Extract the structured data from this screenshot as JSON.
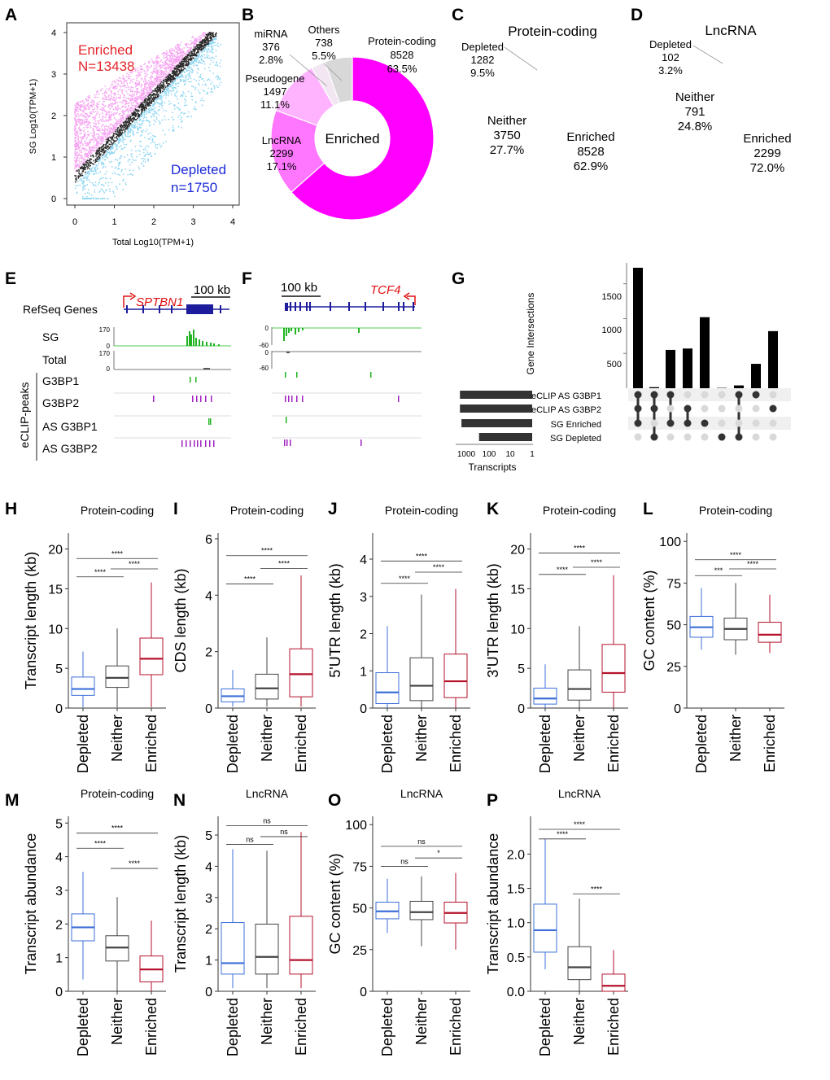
{
  "colors": {
    "enriched": "#ff00ff",
    "enriched_light": "#ffb3ff",
    "enriched_mid": "#ff77ff",
    "depleted": "#00aeef",
    "depleted_pts": "#8fd6f2",
    "neither": "#bebebe",
    "others": "#d8d8d8",
    "box_depleted": "#3c6fd8",
    "box_neither": "#444444",
    "box_enriched": "#b5122c",
    "track_green": "#21b321",
    "track_purple": "#a020c0",
    "gene_blue": "#1c1c9c",
    "gene_red": "#e01010"
  },
  "panels": {
    "A": "A",
    "B": "B",
    "C": "C",
    "D": "D",
    "E": "E",
    "F": "F",
    "G": "G",
    "H": "H",
    "I": "I",
    "J": "J",
    "K": "K",
    "L": "L",
    "M": "M",
    "N": "N",
    "O": "O",
    "P": "P"
  },
  "chart_data": [
    {
      "id": "A",
      "type": "scatter",
      "xlabel": "Total Log10(TPM+1)",
      "ylabel": "SG Log10(TPM+1)",
      "xlim": [
        0,
        4
      ],
      "ylim": [
        0,
        4
      ],
      "xticks": [
        "0",
        "1",
        "2",
        "3",
        "4"
      ],
      "yticks": [
        "0",
        "1",
        "2",
        "3",
        "4"
      ],
      "annotations": {
        "enriched_label": "Enriched",
        "enriched_n": "N=13438",
        "depleted_label": "Depleted",
        "depleted_n": "n=1750"
      }
    },
    {
      "id": "B",
      "type": "pie",
      "donut": true,
      "center_label": "Enriched",
      "title": "",
      "slices": [
        {
          "name": "Protein-coding",
          "count": "8528",
          "pct": "63.5%",
          "value": 63.5
        },
        {
          "name": "LncRNA",
          "count": "2299",
          "pct": "17.1%",
          "value": 17.1
        },
        {
          "name": "Pseudogene",
          "count": "1497",
          "pct": "11.1%",
          "value": 11.1
        },
        {
          "name": "miRNA",
          "count": "376",
          "pct": "2.8%",
          "value": 2.8
        },
        {
          "name": "Others",
          "count": "738",
          "pct": "5.5%",
          "value": 5.5
        }
      ]
    },
    {
      "id": "C",
      "type": "pie",
      "title": "Protein-coding",
      "slices": [
        {
          "name": "Enriched",
          "count": "8528",
          "pct": "62.9%",
          "value": 62.9
        },
        {
          "name": "Neither",
          "count": "3750",
          "pct": "27.7%",
          "value": 27.7
        },
        {
          "name": "Depleted",
          "count": "1282",
          "pct": "9.5%",
          "value": 9.5
        }
      ]
    },
    {
      "id": "D",
      "type": "pie",
      "title": "LncRNA",
      "slices": [
        {
          "name": "Enriched",
          "count": "2299",
          "pct": "72.0%",
          "value": 72.0
        },
        {
          "name": "Neither",
          "count": "791",
          "pct": "24.8%",
          "value": 24.8
        },
        {
          "name": "Depleted",
          "count": "102",
          "pct": "3.2%",
          "value": 3.2
        }
      ]
    },
    {
      "id": "E",
      "type": "genome-track",
      "gene": "SPTBN1",
      "scale": "100 kb",
      "track_labels": [
        "RefSeq Genes",
        "SG",
        "Total",
        "G3BP1",
        "G3BP2",
        "AS G3BP1",
        "AS G3BP2"
      ],
      "group_label": "eCLIP-peaks",
      "sg_range": [
        "170",
        "0"
      ],
      "total_range": [
        "170",
        "0"
      ]
    },
    {
      "id": "F",
      "type": "genome-track",
      "gene": "TCF4",
      "scale": "100 kb",
      "sg_range": [
        "0",
        "-60"
      ],
      "total_range": [
        "0",
        "-60"
      ]
    },
    {
      "id": "G",
      "type": "bar",
      "subtype": "upset",
      "ylabel": "Gene Intersections",
      "yticks": [
        "500",
        "1000",
        "1500"
      ],
      "ylim": [
        0,
        1800
      ],
      "sets": [
        "eCLIP AS G3BP1",
        "eCLIP AS G3BP2",
        "SG Enriched",
        "SG Depleted"
      ],
      "set_sizes": [
        6000,
        6000,
        5000,
        600
      ],
      "set_axis_label": "Transcripts",
      "set_ticks": [
        "1000",
        "100",
        "10",
        "1"
      ],
      "intersections": [
        {
          "value": 1730,
          "members": [
            1,
            1,
            1,
            0
          ]
        },
        {
          "value": 15,
          "members": [
            1,
            1,
            0,
            1
          ]
        },
        {
          "value": 550,
          "members": [
            1,
            0,
            1,
            0
          ]
        },
        {
          "value": 570,
          "members": [
            0,
            1,
            1,
            0
          ]
        },
        {
          "value": 1020,
          "members": [
            0,
            0,
            1,
            0
          ]
        },
        {
          "value": 5,
          "members": [
            0,
            0,
            0,
            1
          ]
        },
        {
          "value": 40,
          "members": [
            1,
            0,
            0,
            1
          ]
        },
        {
          "value": 350,
          "members": [
            1,
            0,
            0,
            0
          ]
        },
        {
          "value": 820,
          "members": [
            0,
            1,
            0,
            0
          ]
        }
      ]
    },
    {
      "id": "H",
      "type": "box",
      "title": "Protein-coding",
      "ylabel": "Transcript length (kb)",
      "ylim": [
        0,
        22
      ],
      "yticks": [
        0,
        5,
        10,
        15,
        20
      ],
      "categories": [
        "Depleted",
        "Neither",
        "Enriched"
      ],
      "boxes": [
        {
          "min": 0.1,
          "q1": 1.6,
          "median": 2.4,
          "q3": 3.9,
          "max": 7.1
        },
        {
          "min": 0.1,
          "q1": 2.6,
          "median": 3.8,
          "q3": 5.3,
          "max": 10.0
        },
        {
          "min": 0.1,
          "q1": 4.2,
          "median": 6.2,
          "q3": 8.8,
          "max": 15.8
        }
      ],
      "sig": [
        {
          "a": 0,
          "b": 1,
          "y": 16.5,
          "label": "****"
        },
        {
          "a": 1,
          "b": 2,
          "y": 17.5,
          "label": "****"
        },
        {
          "a": 0,
          "b": 2,
          "y": 18.8,
          "label": "****"
        }
      ]
    },
    {
      "id": "I",
      "type": "box",
      "title": "Protein-coding",
      "ylabel": "CDS length (kb)",
      "ylim": [
        0,
        6.2
      ],
      "yticks": [
        0,
        2,
        4,
        6
      ],
      "categories": [
        "Depleted",
        "Neither",
        "Enriched"
      ],
      "boxes": [
        {
          "min": 0.05,
          "q1": 0.22,
          "median": 0.42,
          "q3": 0.68,
          "max": 1.35
        },
        {
          "min": 0.05,
          "q1": 0.32,
          "median": 0.7,
          "q3": 1.2,
          "max": 2.5
        },
        {
          "min": 0.05,
          "q1": 0.4,
          "median": 1.2,
          "q3": 2.1,
          "max": 4.7
        }
      ],
      "sig": [
        {
          "a": 0,
          "b": 1,
          "y": 4.4,
          "label": "****"
        },
        {
          "a": 1,
          "b": 2,
          "y": 4.95,
          "label": "****"
        },
        {
          "a": 0,
          "b": 2,
          "y": 5.4,
          "label": "****"
        }
      ]
    },
    {
      "id": "J",
      "type": "box",
      "title": "Protein-coding",
      "ylabel": "5'UTR length (kb)",
      "ylim": [
        0,
        4.7
      ],
      "yticks": [
        0,
        1,
        2,
        3,
        4
      ],
      "categories": [
        "Depleted",
        "Neither",
        "Enriched"
      ],
      "boxes": [
        {
          "min": 0.0,
          "q1": 0.12,
          "median": 0.42,
          "q3": 0.95,
          "max": 2.2
        },
        {
          "min": 0.0,
          "q1": 0.2,
          "median": 0.6,
          "q3": 1.35,
          "max": 3.05
        },
        {
          "min": 0.0,
          "q1": 0.28,
          "median": 0.72,
          "q3": 1.45,
          "max": 3.2
        }
      ],
      "sig": [
        {
          "a": 0,
          "b": 1,
          "y": 3.35,
          "label": "****"
        },
        {
          "a": 1,
          "b": 2,
          "y": 3.65,
          "label": "****"
        },
        {
          "a": 0,
          "b": 2,
          "y": 3.95,
          "label": "****"
        }
      ]
    },
    {
      "id": "K",
      "type": "box",
      "title": "Protein-coding",
      "ylabel": "3'UTR length (kb)",
      "ylim": [
        0,
        22
      ],
      "yticks": [
        0,
        5,
        10,
        15,
        20
      ],
      "categories": [
        "Depleted",
        "Neither",
        "Enriched"
      ],
      "boxes": [
        {
          "min": 0.0,
          "q1": 0.5,
          "median": 1.2,
          "q3": 2.5,
          "max": 5.5
        },
        {
          "min": 0.0,
          "q1": 1.0,
          "median": 2.4,
          "q3": 4.8,
          "max": 10.3
        },
        {
          "min": 0.0,
          "q1": 2.0,
          "median": 4.4,
          "q3": 8.0,
          "max": 16.7
        }
      ],
      "sig": [
        {
          "a": 0,
          "b": 1,
          "y": 16.8,
          "label": "****"
        },
        {
          "a": 1,
          "b": 2,
          "y": 17.7,
          "label": "****"
        },
        {
          "a": 0,
          "b": 2,
          "y": 19.5,
          "label": "****"
        }
      ]
    },
    {
      "id": "L",
      "type": "box",
      "title": "Protein-coding",
      "ylabel": "GC content (%)",
      "ylim": [
        0,
        105
      ],
      "yticks": [
        0,
        25,
        50,
        75,
        100
      ],
      "categories": [
        "Depleted",
        "Neither",
        "Enriched"
      ],
      "boxes": [
        {
          "min": 35,
          "q1": 42.5,
          "median": 48.5,
          "q3": 55,
          "max": 72
        },
        {
          "min": 32,
          "q1": 41,
          "median": 47.5,
          "q3": 54,
          "max": 75
        },
        {
          "min": 33,
          "q1": 39.5,
          "median": 44,
          "q3": 51.5,
          "max": 68
        }
      ],
      "sig": [
        {
          "a": 0,
          "b": 1,
          "y": 79.5,
          "label": "***"
        },
        {
          "a": 1,
          "b": 2,
          "y": 83.5,
          "label": "****"
        },
        {
          "a": 0,
          "b": 2,
          "y": 89,
          "label": "****"
        }
      ]
    },
    {
      "id": "M",
      "type": "box",
      "title": "Protein-coding",
      "ylabel": "Transcript abundance",
      "ylim": [
        0,
        5.2
      ],
      "yticks": [
        0,
        1,
        2,
        3,
        4,
        5
      ],
      "categories": [
        "Depleted",
        "Neither",
        "Enriched"
      ],
      "boxes": [
        {
          "min": 0.35,
          "q1": 1.5,
          "median": 1.9,
          "q3": 2.3,
          "max": 3.55
        },
        {
          "min": 0.0,
          "q1": 0.9,
          "median": 1.3,
          "q3": 1.65,
          "max": 2.8
        },
        {
          "min": 0.0,
          "q1": 0.28,
          "median": 0.65,
          "q3": 1.05,
          "max": 2.1
        }
      ],
      "sig": [
        {
          "a": 0,
          "b": 1,
          "y": 4.25,
          "label": "****"
        },
        {
          "a": 1,
          "b": 2,
          "y": 3.65,
          "label": "****"
        },
        {
          "a": 0,
          "b": 2,
          "y": 4.7,
          "label": "****"
        }
      ]
    },
    {
      "id": "N",
      "type": "box",
      "title": "LncRNA",
      "ylabel": "Transcript length (kb)",
      "ylim": [
        0,
        5.6
      ],
      "yticks": [
        0,
        1,
        2,
        3,
        4,
        5
      ],
      "categories": [
        "Depleted",
        "Neither",
        "Enriched"
      ],
      "boxes": [
        {
          "min": 0.1,
          "q1": 0.55,
          "median": 0.9,
          "q3": 2.2,
          "max": 4.55
        },
        {
          "min": 0.1,
          "q1": 0.55,
          "median": 1.1,
          "q3": 2.15,
          "max": 4.5
        },
        {
          "min": 0.1,
          "q1": 0.55,
          "median": 1.0,
          "q3": 2.4,
          "max": 5.1
        }
      ],
      "sig": [
        {
          "a": 0,
          "b": 1,
          "y": 4.7,
          "label": "ns"
        },
        {
          "a": 1,
          "b": 2,
          "y": 4.95,
          "label": "ns"
        },
        {
          "a": 0,
          "b": 2,
          "y": 5.3,
          "label": "ns"
        }
      ]
    },
    {
      "id": "O",
      "type": "box",
      "title": "LncRNA",
      "ylabel": "GC content (%)",
      "ylim": [
        0,
        105
      ],
      "yticks": [
        0,
        25,
        50,
        75,
        100
      ],
      "categories": [
        "Depleted",
        "Neither",
        "Enriched"
      ],
      "boxes": [
        {
          "min": 35,
          "q1": 43.5,
          "median": 48,
          "q3": 53.5,
          "max": 67.5
        },
        {
          "min": 27,
          "q1": 43,
          "median": 47.5,
          "q3": 54,
          "max": 69
        },
        {
          "min": 25,
          "q1": 41,
          "median": 47,
          "q3": 53.5,
          "max": 71
        }
      ],
      "sig": [
        {
          "a": 0,
          "b": 1,
          "y": 75,
          "label": "ns"
        },
        {
          "a": 1,
          "b": 2,
          "y": 80,
          "label": "*"
        },
        {
          "a": 0,
          "b": 2,
          "y": 87,
          "label": "ns"
        }
      ]
    },
    {
      "id": "P",
      "type": "box",
      "title": "LncRNA",
      "ylabel": "Transcript abundance",
      "ylim": [
        0,
        2.55
      ],
      "yticks": [
        0.0,
        0.5,
        1.0,
        1.5,
        2.0
      ],
      "ytick_labels": [
        "0.0",
        "0.5",
        "1.0",
        "1.5",
        "2.0"
      ],
      "categories": [
        "Depleted",
        "Neither",
        "Enriched"
      ],
      "boxes": [
        {
          "min": 0.32,
          "q1": 0.57,
          "median": 0.89,
          "q3": 1.27,
          "max": 2.22
        },
        {
          "min": 0.0,
          "q1": 0.17,
          "median": 0.35,
          "q3": 0.65,
          "max": 1.35
        },
        {
          "min": 0.0,
          "q1": 0.0,
          "median": 0.08,
          "q3": 0.25,
          "max": 0.6
        }
      ],
      "sig": [
        {
          "a": 0,
          "b": 1,
          "y": 2.22,
          "label": "****"
        },
        {
          "a": 1,
          "b": 2,
          "y": 1.42,
          "label": "****"
        },
        {
          "a": 0,
          "b": 2,
          "y": 2.36,
          "label": "****"
        }
      ]
    }
  ]
}
